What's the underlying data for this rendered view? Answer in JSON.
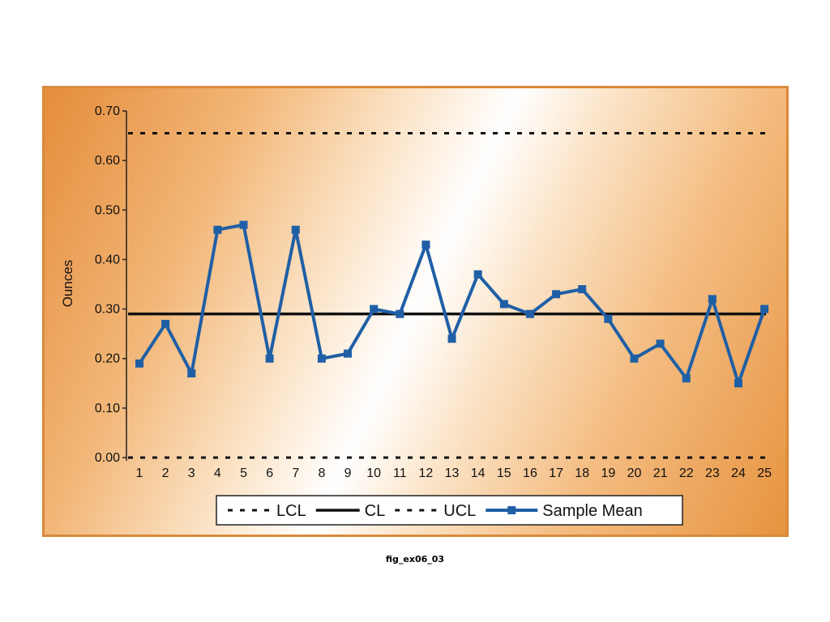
{
  "caption": "fig_ex06_03",
  "chart_data": {
    "type": "line",
    "title": "",
    "xlabel": "",
    "ylabel": "Ounces",
    "ylim": [
      0,
      0.7
    ],
    "yticks": [
      "0.00",
      "0.10",
      "0.20",
      "0.30",
      "0.40",
      "0.50",
      "0.60",
      "0.70"
    ],
    "categories": [
      "1",
      "2",
      "3",
      "4",
      "5",
      "6",
      "7",
      "8",
      "9",
      "10",
      "11",
      "12",
      "13",
      "14",
      "15",
      "16",
      "17",
      "18",
      "19",
      "20",
      "21",
      "22",
      "23",
      "24",
      "25"
    ],
    "grid": false,
    "legend_position": "bottom",
    "series": [
      {
        "name": "LCL",
        "style": "dashed",
        "color": "#111111",
        "constant": 0.0
      },
      {
        "name": "CL",
        "style": "solid",
        "color": "#111111",
        "constant": 0.29
      },
      {
        "name": "UCL",
        "style": "dashed",
        "color": "#111111",
        "constant": 0.655
      },
      {
        "name": "Sample Mean",
        "style": "line-square-markers",
        "color": "#1f5fa6",
        "values": [
          0.19,
          0.27,
          0.17,
          0.46,
          0.47,
          0.2,
          0.46,
          0.2,
          0.21,
          0.3,
          0.29,
          0.43,
          0.24,
          0.37,
          0.31,
          0.29,
          0.33,
          0.34,
          0.28,
          0.2,
          0.23,
          0.16,
          0.32,
          0.15,
          0.3
        ]
      }
    ]
  }
}
